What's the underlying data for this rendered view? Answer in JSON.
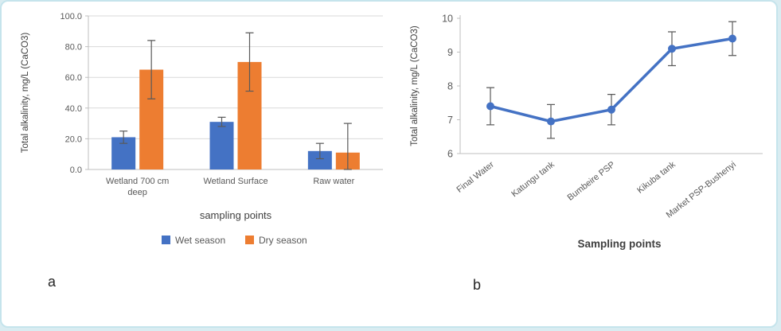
{
  "panels": {
    "a_label": "a",
    "b_label": "b"
  },
  "colors": {
    "wet": "#4472c4",
    "dry": "#ed7d31",
    "line": "#4472c4",
    "grid": "#d9d9d9",
    "axis": "#bfbfbf",
    "tick_text": "#595959",
    "title_text": "#404040",
    "error": "#595959"
  },
  "chart_data": [
    {
      "type": "bar",
      "panel": "a",
      "title": "",
      "ylabel": "Total alkalinity, mg/L (CaCO3)",
      "xlabel": "sampling points",
      "categories": [
        "Wetland 700 cm deep",
        "Wetland Surface",
        "Raw water"
      ],
      "series": [
        {
          "name": "Wet season",
          "color": "#4472c4",
          "values": [
            21,
            31,
            12
          ],
          "errors": [
            4,
            3,
            5
          ]
        },
        {
          "name": "Dry season",
          "color": "#ed7d31",
          "values": [
            65,
            70,
            11
          ],
          "errors": [
            19,
            19,
            19
          ]
        }
      ],
      "ylim": [
        0,
        100
      ],
      "yticks": [
        0,
        20,
        40,
        60,
        80,
        100
      ],
      "ytick_labels": [
        "0.0",
        "20.0",
        "40.0",
        "60.0",
        "80.0",
        "100.0"
      ],
      "grid": true,
      "legend_position": "bottom"
    },
    {
      "type": "line",
      "panel": "b",
      "title": "",
      "ylabel": "Total alkalinity, mg/L (CaCO3)",
      "xlabel": "Sampling points",
      "categories": [
        "Final Water",
        "Katungu tank",
        "Bumbeire PSP",
        "Kikuba tank",
        "Market PSP-Bushenyi"
      ],
      "series": [
        {
          "name": "Total alkalinity",
          "color": "#4472c4",
          "values": [
            7.4,
            6.95,
            7.3,
            9.1,
            9.4
          ],
          "errors": [
            0.55,
            0.5,
            0.45,
            0.5,
            0.5
          ]
        }
      ],
      "ylim": [
        6,
        10
      ],
      "yticks": [
        6,
        7,
        8,
        9,
        10
      ],
      "ytick_labels": [
        "6",
        "7",
        "8",
        "9",
        "10"
      ],
      "grid": false,
      "legend_position": "none"
    }
  ]
}
